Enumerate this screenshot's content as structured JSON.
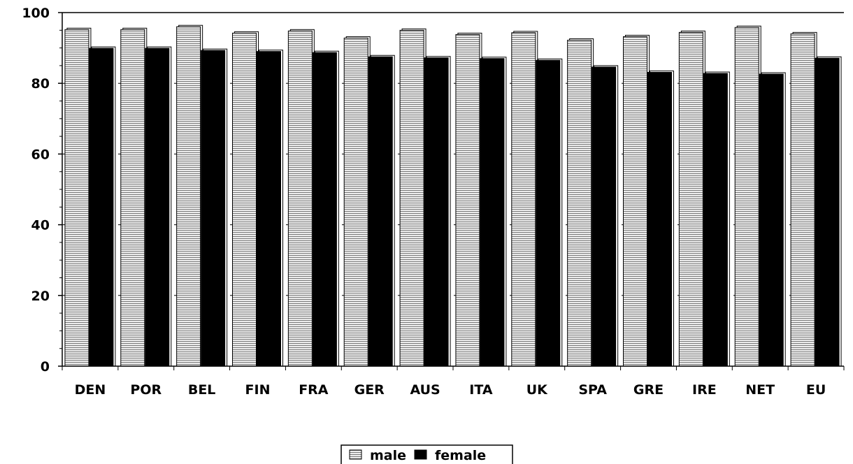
{
  "chart_data": {
    "type": "bar",
    "title": "",
    "xlabel": "",
    "ylabel": "",
    "categories": [
      "DEN",
      "POR",
      "BEL",
      "FIN",
      "FRA",
      "GER",
      "AUS",
      "ITA",
      "UK",
      "SPA",
      "GRE",
      "IRE",
      "NET",
      "EU"
    ],
    "series": [
      {
        "name": "male",
        "pattern": "horizontal-hatch",
        "fill": "#c8c8c8",
        "values": [
          95.2,
          95.2,
          96.0,
          94.2,
          94.8,
          92.8,
          95.0,
          93.8,
          94.3,
          92.2,
          93.2,
          94.4,
          95.8,
          94.0
        ]
      },
      {
        "name": "female",
        "pattern": "solid",
        "fill": "#000000",
        "values": [
          89.9,
          89.9,
          89.3,
          89.0,
          88.7,
          87.5,
          87.2,
          87.0,
          86.5,
          84.6,
          83.1,
          82.8,
          82.6,
          87.1
        ]
      }
    ],
    "ylim": [
      0,
      100
    ],
    "yticks": [
      0,
      20,
      40,
      60,
      80,
      100
    ],
    "grid": "dashed-horizontal",
    "legend": "bottom-center"
  }
}
